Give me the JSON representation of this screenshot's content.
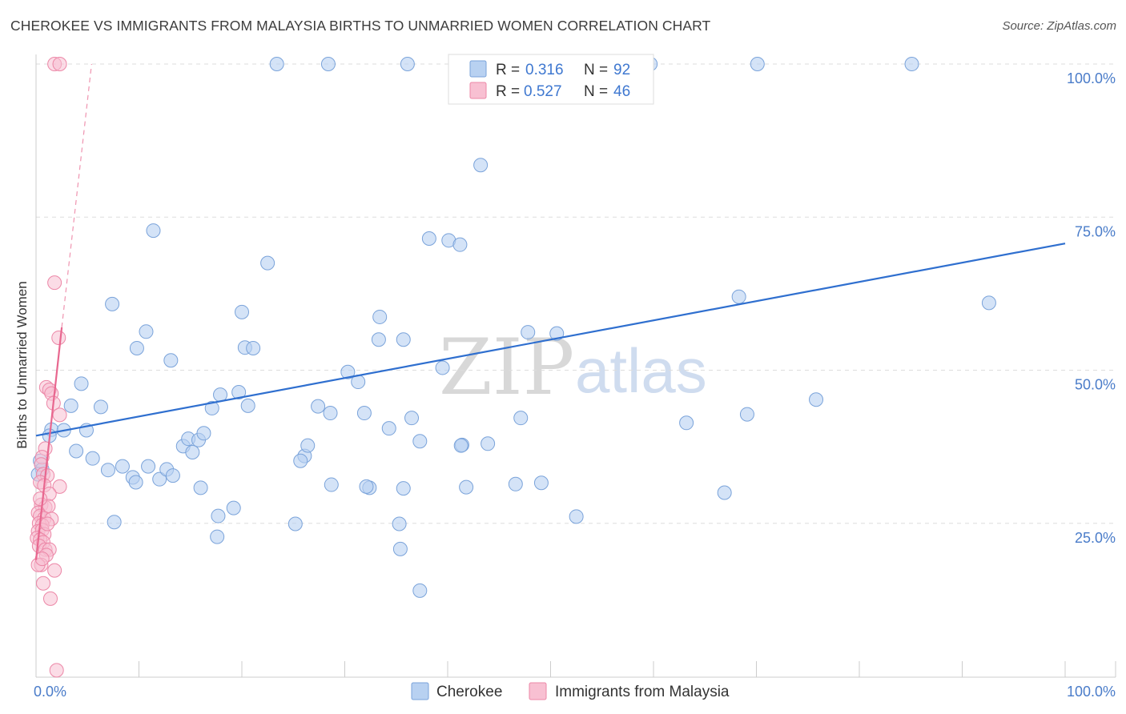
{
  "title": "CHEROKEE VS IMMIGRANTS FROM MALAYSIA BIRTHS TO UNMARRIED WOMEN CORRELATION CHART",
  "source": "Source: ZipAtlas.com",
  "watermark": {
    "part1": "ZIP",
    "part2": "atlas"
  },
  "colors": {
    "blue_fill": "#b8d1f1",
    "blue_stroke": "#7aa3da",
    "blue_line": "#2f6fcf",
    "pink_fill": "#f8c0d2",
    "pink_stroke": "#ec87a7",
    "pink_line": "#e8678f",
    "tick_text": "#4a7cc9",
    "grid": "#dddddd"
  },
  "legend": {
    "r_label": "R =",
    "n_label": "N =",
    "series": [
      {
        "name": "Cherokee",
        "r": "0.316",
        "n": "92"
      },
      {
        "name": "Immigrants from Malaysia",
        "r": "0.527",
        "n": "46"
      }
    ]
  },
  "chart_data": {
    "type": "scatter",
    "title": "CHEROKEE VS IMMIGRANTS FROM MALAYSIA BIRTHS TO UNMARRIED WOMEN CORRELATION CHART",
    "xlabel": "",
    "ylabel": "Births to Unmarried Women",
    "xlim": [
      0,
      100
    ],
    "ylim": [
      0,
      100
    ],
    "x_tick_labels": [
      {
        "value": 0,
        "label": "0.0%"
      },
      {
        "value": 100,
        "label": "100.0%"
      }
    ],
    "y_tick_labels": [
      {
        "value": 25,
        "label": "25.0%"
      },
      {
        "value": 50,
        "label": "50.0%"
      },
      {
        "value": 75,
        "label": "75.0%"
      },
      {
        "value": 100,
        "label": "100.0%"
      }
    ],
    "series": [
      {
        "name": "Cherokee",
        "points": [
          [
            23.4,
            100
          ],
          [
            28.4,
            100
          ],
          [
            36.1,
            100
          ],
          [
            59.7,
            100
          ],
          [
            70.1,
            100
          ],
          [
            85.1,
            100
          ],
          [
            43.2,
            83.5
          ],
          [
            11.4,
            72.8
          ],
          [
            38.2,
            71.5
          ],
          [
            40.1,
            71.2
          ],
          [
            41.2,
            70.5
          ],
          [
            22.5,
            67.5
          ],
          [
            7.4,
            60.8
          ],
          [
            20.0,
            59.5
          ],
          [
            33.4,
            58.7
          ],
          [
            10.7,
            56.3
          ],
          [
            35.7,
            55.0
          ],
          [
            33.3,
            55.0
          ],
          [
            50.6,
            56.0
          ],
          [
            9.8,
            53.6
          ],
          [
            20.3,
            53.7
          ],
          [
            21.1,
            53.6
          ],
          [
            13.1,
            51.6
          ],
          [
            30.3,
            49.7
          ],
          [
            31.3,
            48.1
          ],
          [
            39.5,
            50.4
          ],
          [
            4.4,
            47.8
          ],
          [
            17.9,
            46.0
          ],
          [
            19.7,
            46.4
          ],
          [
            68.3,
            62.0
          ],
          [
            92.6,
            61.0
          ],
          [
            3.4,
            44.2
          ],
          [
            6.3,
            44.0
          ],
          [
            17.1,
            43.8
          ],
          [
            20.6,
            44.2
          ],
          [
            27.4,
            44.1
          ],
          [
            28.6,
            43.0
          ],
          [
            31.9,
            43.0
          ],
          [
            34.3,
            40.5
          ],
          [
            36.5,
            42.2
          ],
          [
            47.1,
            42.2
          ],
          [
            69.1,
            42.8
          ],
          [
            75.8,
            45.2
          ],
          [
            47.8,
            56.2
          ],
          [
            1.5,
            40.3
          ],
          [
            2.7,
            40.2
          ],
          [
            1.3,
            39.3
          ],
          [
            4.9,
            40.2
          ],
          [
            14.3,
            37.6
          ],
          [
            14.8,
            38.8
          ],
          [
            15.2,
            36.6
          ],
          [
            15.8,
            38.6
          ],
          [
            16.3,
            39.7
          ],
          [
            26.1,
            36.0
          ],
          [
            26.4,
            37.7
          ],
          [
            25.7,
            35.2
          ],
          [
            41.4,
            37.8
          ],
          [
            43.9,
            38.0
          ],
          [
            41.3,
            37.7
          ],
          [
            37.3,
            38.4
          ],
          [
            63.2,
            41.4
          ],
          [
            0.4,
            35.2
          ],
          [
            0.6,
            33.8
          ],
          [
            3.9,
            36.8
          ],
          [
            5.5,
            35.6
          ],
          [
            7.0,
            33.7
          ],
          [
            8.4,
            34.3
          ],
          [
            9.4,
            32.5
          ],
          [
            9.7,
            31.7
          ],
          [
            10.9,
            34.3
          ],
          [
            12.0,
            32.2
          ],
          [
            12.7,
            33.8
          ],
          [
            13.3,
            32.8
          ],
          [
            16.0,
            30.8
          ],
          [
            28.7,
            31.3
          ],
          [
            32.4,
            30.8
          ],
          [
            35.7,
            30.7
          ],
          [
            41.8,
            30.9
          ],
          [
            66.9,
            30.0
          ],
          [
            0.2,
            33.0
          ],
          [
            17.7,
            26.2
          ],
          [
            19.2,
            27.5
          ],
          [
            25.2,
            24.9
          ],
          [
            17.6,
            22.8
          ],
          [
            35.3,
            24.9
          ],
          [
            7.6,
            25.2
          ],
          [
            35.4,
            20.8
          ],
          [
            52.5,
            26.1
          ],
          [
            37.3,
            14.0
          ],
          [
            32.1,
            31.0
          ],
          [
            46.6,
            31.4
          ],
          [
            49.1,
            31.6
          ]
        ],
        "trend": {
          "x0": 0,
          "y0": 39.3,
          "x1": 100,
          "y1": 70.7
        }
      },
      {
        "name": "Immigrants from Malaysia",
        "points": [
          [
            1.8,
            100
          ],
          [
            2.3,
            100
          ],
          [
            1.8,
            64.3
          ],
          [
            2.2,
            55.3
          ],
          [
            1.0,
            47.2
          ],
          [
            1.3,
            46.8
          ],
          [
            1.5,
            46.2
          ],
          [
            1.7,
            44.6
          ],
          [
            2.3,
            42.7
          ],
          [
            0.9,
            37.2
          ],
          [
            0.6,
            35.8
          ],
          [
            0.5,
            34.6
          ],
          [
            0.7,
            33.0
          ],
          [
            1.1,
            32.8
          ],
          [
            0.4,
            31.7
          ],
          [
            0.8,
            31.2
          ],
          [
            2.3,
            31.0
          ],
          [
            1.3,
            29.8
          ],
          [
            0.5,
            28.0
          ],
          [
            0.9,
            27.6
          ],
          [
            1.2,
            27.8
          ],
          [
            0.2,
            26.7
          ],
          [
            0.4,
            26.2
          ],
          [
            0.8,
            25.8
          ],
          [
            1.5,
            25.7
          ],
          [
            0.3,
            25.0
          ],
          [
            0.6,
            24.7
          ],
          [
            0.2,
            23.7
          ],
          [
            0.6,
            23.9
          ],
          [
            0.8,
            23.2
          ],
          [
            0.1,
            22.6
          ],
          [
            0.4,
            22.3
          ],
          [
            0.7,
            21.9
          ],
          [
            0.3,
            21.3
          ],
          [
            0.9,
            20.7
          ],
          [
            1.3,
            20.7
          ],
          [
            1.0,
            19.8
          ],
          [
            0.5,
            18.2
          ],
          [
            0.2,
            18.2
          ],
          [
            1.8,
            17.3
          ],
          [
            0.7,
            15.2
          ],
          [
            1.4,
            12.7
          ],
          [
            2.0,
            1.0
          ],
          [
            0.6,
            19.2
          ],
          [
            1.1,
            24.9
          ],
          [
            0.4,
            29.0
          ]
        ],
        "trend": {
          "x0": 0,
          "y0": 19.0,
          "x1": 2.5,
          "y1": 57.0
        },
        "trend_extension": {
          "x0": 2.5,
          "y0": 57.0,
          "x1": 5.4,
          "y1": 100
        }
      }
    ]
  }
}
